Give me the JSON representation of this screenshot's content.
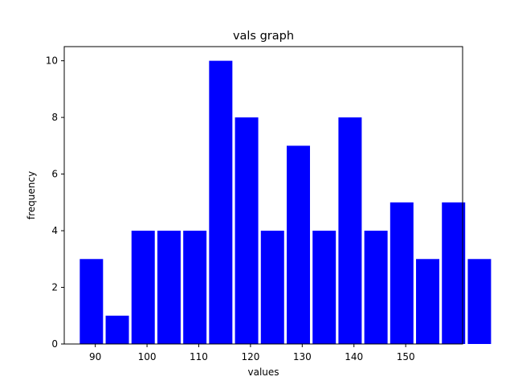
{
  "chart_data": {
    "type": "bar",
    "title": "vals graph",
    "xlabel": "values",
    "ylabel": "frequency",
    "bar_color": "#0000ff",
    "bins": [
      {
        "left": 87.0,
        "right": 91.5,
        "value": 3
      },
      {
        "left": 92.0,
        "right": 96.5,
        "value": 1
      },
      {
        "left": 97.0,
        "right": 101.5,
        "value": 4
      },
      {
        "left": 102.0,
        "right": 106.5,
        "value": 4
      },
      {
        "left": 107.0,
        "right": 111.5,
        "value": 4
      },
      {
        "left": 112.0,
        "right": 116.5,
        "value": 10
      },
      {
        "left": 117.0,
        "right": 121.5,
        "value": 8
      },
      {
        "left": 122.0,
        "right": 126.5,
        "value": 4
      },
      {
        "left": 127.0,
        "right": 131.5,
        "value": 7
      },
      {
        "left": 132.0,
        "right": 136.5,
        "value": 4
      },
      {
        "left": 137.0,
        "right": 141.5,
        "value": 8
      },
      {
        "left": 142.0,
        "right": 146.5,
        "value": 4
      },
      {
        "left": 147.0,
        "right": 151.5,
        "value": 5
      },
      {
        "left": 152.0,
        "right": 156.5,
        "value": 3
      },
      {
        "left": 157.0,
        "right": 161.5,
        "value": 5
      },
      {
        "left": 162.0,
        "right": 166.5,
        "value": 3
      }
    ],
    "xlim": [
      84.0,
      161.0
    ],
    "ylim": [
      0,
      10.5
    ],
    "xticks": [
      90,
      100,
      110,
      120,
      130,
      140,
      150
    ],
    "xtick_labels": [
      "90",
      "100",
      "110",
      "120",
      "130",
      "140",
      "150"
    ],
    "yticks": [
      0,
      2,
      4,
      6,
      8,
      10
    ],
    "ytick_labels": [
      "0",
      "2",
      "4",
      "6",
      "8",
      "10"
    ],
    "grid": false,
    "legend": "none"
  }
}
